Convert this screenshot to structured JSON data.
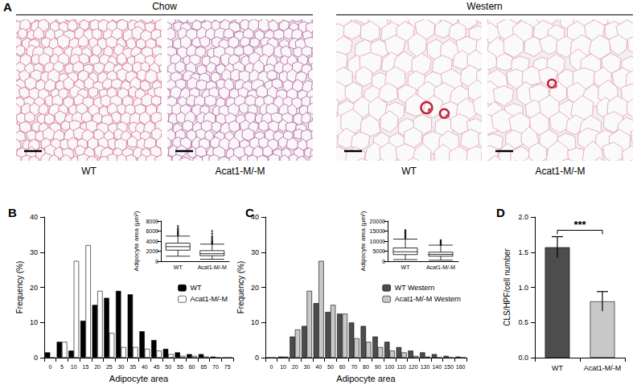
{
  "panel_a": {
    "label": "A",
    "groups": [
      {
        "title": "Chow",
        "images": [
          "WT",
          "Acat1-M/-M"
        ]
      },
      {
        "title": "Western",
        "images": [
          "WT",
          "Acat1-M/-M"
        ]
      }
    ]
  },
  "chart_data": [
    {
      "type": "bar",
      "title": "B",
      "xlabel": "Adipocyte area",
      "ylabel": "Frequency (%)",
      "categories": [
        "0",
        "5",
        "10",
        "15",
        "20",
        "25",
        "30",
        "35",
        "40",
        "45",
        "50",
        "55",
        "60",
        "65",
        "70",
        "75"
      ],
      "series": [
        {
          "name": "WT",
          "color": "#000000",
          "values": [
            1.5,
            4.5,
            2,
            10.5,
            15,
            17,
            19,
            18,
            7.5,
            5,
            2.5,
            1.5,
            1,
            1,
            0.3,
            0
          ]
        },
        {
          "name": "Acat1-M/-M",
          "color": "#ffffff",
          "values": [
            0,
            4.5,
            27.5,
            32,
            19,
            7,
            3,
            3,
            2.5,
            2,
            1,
            0.5,
            0.5,
            0.3,
            0,
            0
          ]
        }
      ],
      "ylim": [
        0,
        40
      ],
      "yticks": [
        0,
        10,
        20,
        30,
        40
      ],
      "grid": false,
      "legend": "right",
      "inset": {
        "type": "boxplot",
        "ylabel": "Adipocyte area (µm²)",
        "categories": [
          "WT",
          "Acat1-M/-M"
        ],
        "values": [
          [
            1000,
            2200,
            2900,
            3600,
            5000
          ],
          [
            400,
            1100,
            1500,
            2100,
            3400
          ]
        ],
        "outliers": [
          [
            5200,
            5400,
            5600,
            5800,
            6000,
            6300,
            6600,
            7000
          ],
          [
            3500,
            3700,
            3900,
            4100,
            4400,
            4700,
            5000,
            5500,
            6000
          ]
        ],
        "ylim": [
          0,
          8000
        ],
        "yticks": [
          0,
          2000,
          4000,
          6000,
          8000
        ]
      }
    },
    {
      "type": "bar",
      "title": "C",
      "xlabel": "Adipocyte area",
      "ylabel": "Frequency (%)",
      "categories": [
        "0",
        "10",
        "20",
        "30",
        "40",
        "50",
        "60",
        "70",
        "80",
        "90",
        "100",
        "110",
        "120",
        "130",
        "140",
        "150",
        "160"
      ],
      "series": [
        {
          "name": "WT Western",
          "color": "#4d4d4d",
          "values": [
            0,
            0.3,
            6,
            9,
            15.5,
            13,
            12.5,
            10,
            9,
            6,
            4.5,
            3,
            2,
            1.5,
            1,
            0.5,
            0.3
          ]
        },
        {
          "name": "Acat1-M/-M Western",
          "color": "#c8c8c8",
          "values": [
            0,
            0.3,
            8,
            19,
            27.5,
            15,
            12.5,
            5.5,
            4.5,
            3,
            2,
            1.5,
            0.5,
            0.3,
            0,
            0,
            0
          ]
        }
      ],
      "ylim": [
        0,
        40
      ],
      "yticks": [
        0,
        10,
        20,
        30,
        40
      ],
      "grid": false,
      "legend": "right",
      "inset": {
        "type": "boxplot",
        "ylabel": "Adipocyte area (µm²)",
        "categories": [
          "WT",
          "Acat1-M/-M"
        ],
        "values": [
          [
            800,
            3300,
            4700,
            6600,
            11000
          ],
          [
            500,
            2500,
            3400,
            4500,
            8000
          ]
        ],
        "outliers": [
          [
            11500,
            12000,
            12500,
            13000,
            13500,
            14000,
            14500,
            15000,
            15500
          ],
          [
            8200,
            8600,
            9000,
            9500,
            10000,
            10500
          ]
        ],
        "ylim": [
          0,
          20000
        ],
        "yticks": [
          0,
          5000,
          10000,
          15000,
          20000
        ]
      }
    },
    {
      "type": "bar",
      "title": "D",
      "ylabel": "CLS/HPF/cell number",
      "categories": [
        "WT",
        "Acat1-M/-M"
      ],
      "values": [
        1.57,
        0.8
      ],
      "errors": [
        0.15,
        0.14
      ],
      "colors": [
        "#4d4d4d",
        "#c8c8c8"
      ],
      "ylim": [
        0,
        2
      ],
      "yticks": [
        {
          "value": 0,
          "label": "0.0"
        },
        0.5,
        {
          "value": 1,
          "label": "1.0"
        },
        1.5,
        {
          "value": 2,
          "label": "2.0"
        }
      ],
      "grid": false,
      "annotations": [
        "***"
      ]
    }
  ]
}
